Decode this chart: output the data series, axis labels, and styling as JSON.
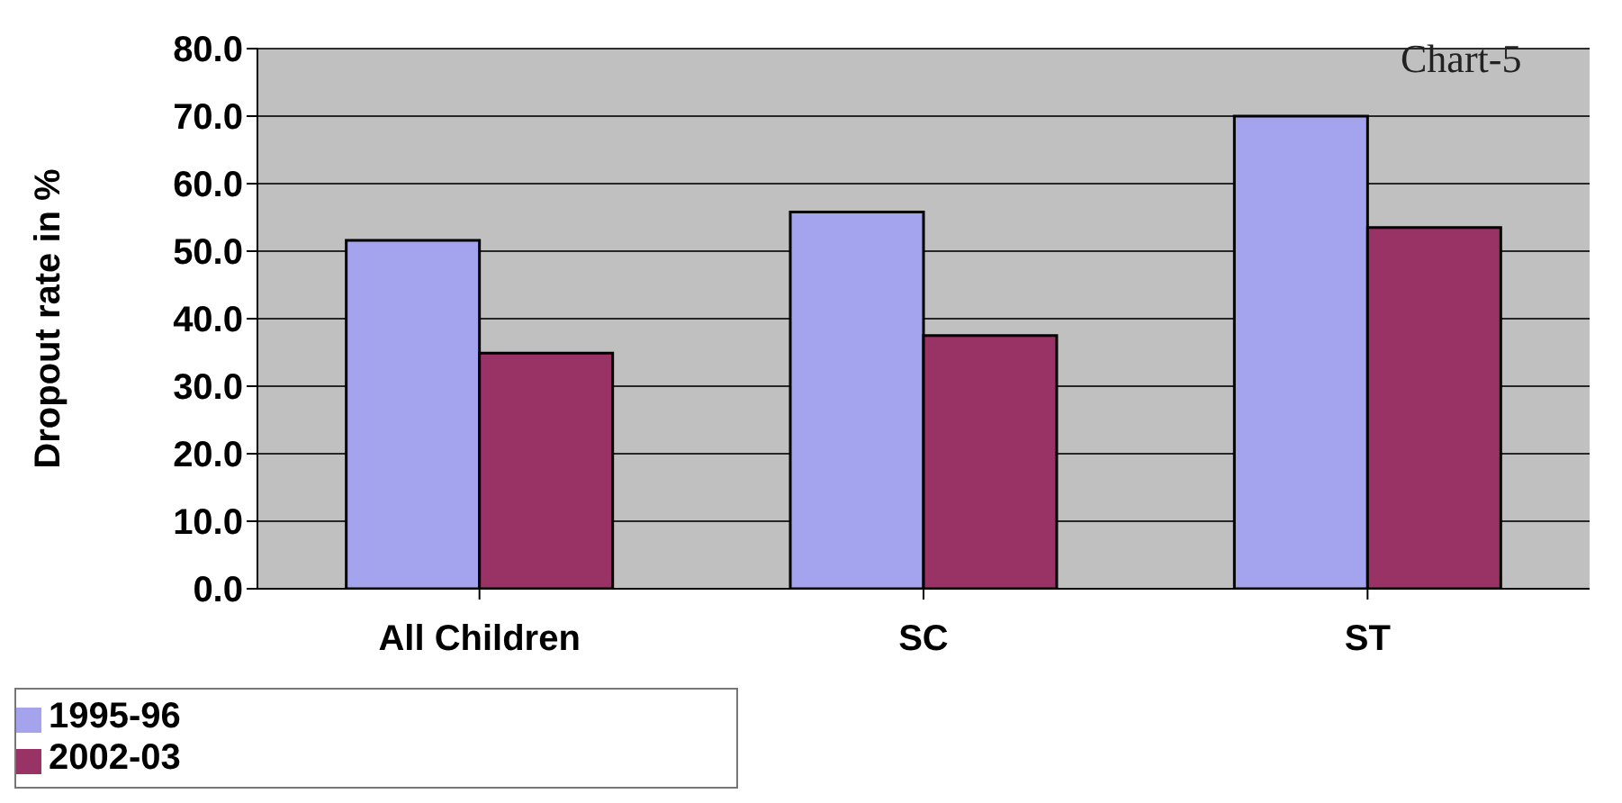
{
  "chart_data": {
    "type": "bar",
    "ylabel": "Dropout rate in %",
    "categories": [
      "All Children",
      "SC",
      "ST"
    ],
    "series": [
      {
        "name": "1995-96",
        "color": "#a4a4ee",
        "values": [
          51.6,
          55.8,
          70.0
        ]
      },
      {
        "name": "2002-03",
        "color": "#993366",
        "values": [
          34.9,
          37.5,
          53.5
        ]
      }
    ],
    "ylim": [
      0,
      80
    ],
    "yticks": [
      {
        "value": 0,
        "label": "0.0"
      },
      {
        "value": 10,
        "label": "10.0"
      },
      {
        "value": 20,
        "label": "20.0"
      },
      {
        "value": 30,
        "label": "30.0"
      },
      {
        "value": 40,
        "label": "40.0"
      },
      {
        "value": 50,
        "label": "50.0"
      },
      {
        "value": 60,
        "label": "60.0"
      },
      {
        "value": 70,
        "label": "70.0"
      },
      {
        "value": 80,
        "label": "80.0"
      }
    ],
    "grid": "y",
    "legend": "bottom left",
    "annotations": [
      "Chart-5"
    ]
  }
}
